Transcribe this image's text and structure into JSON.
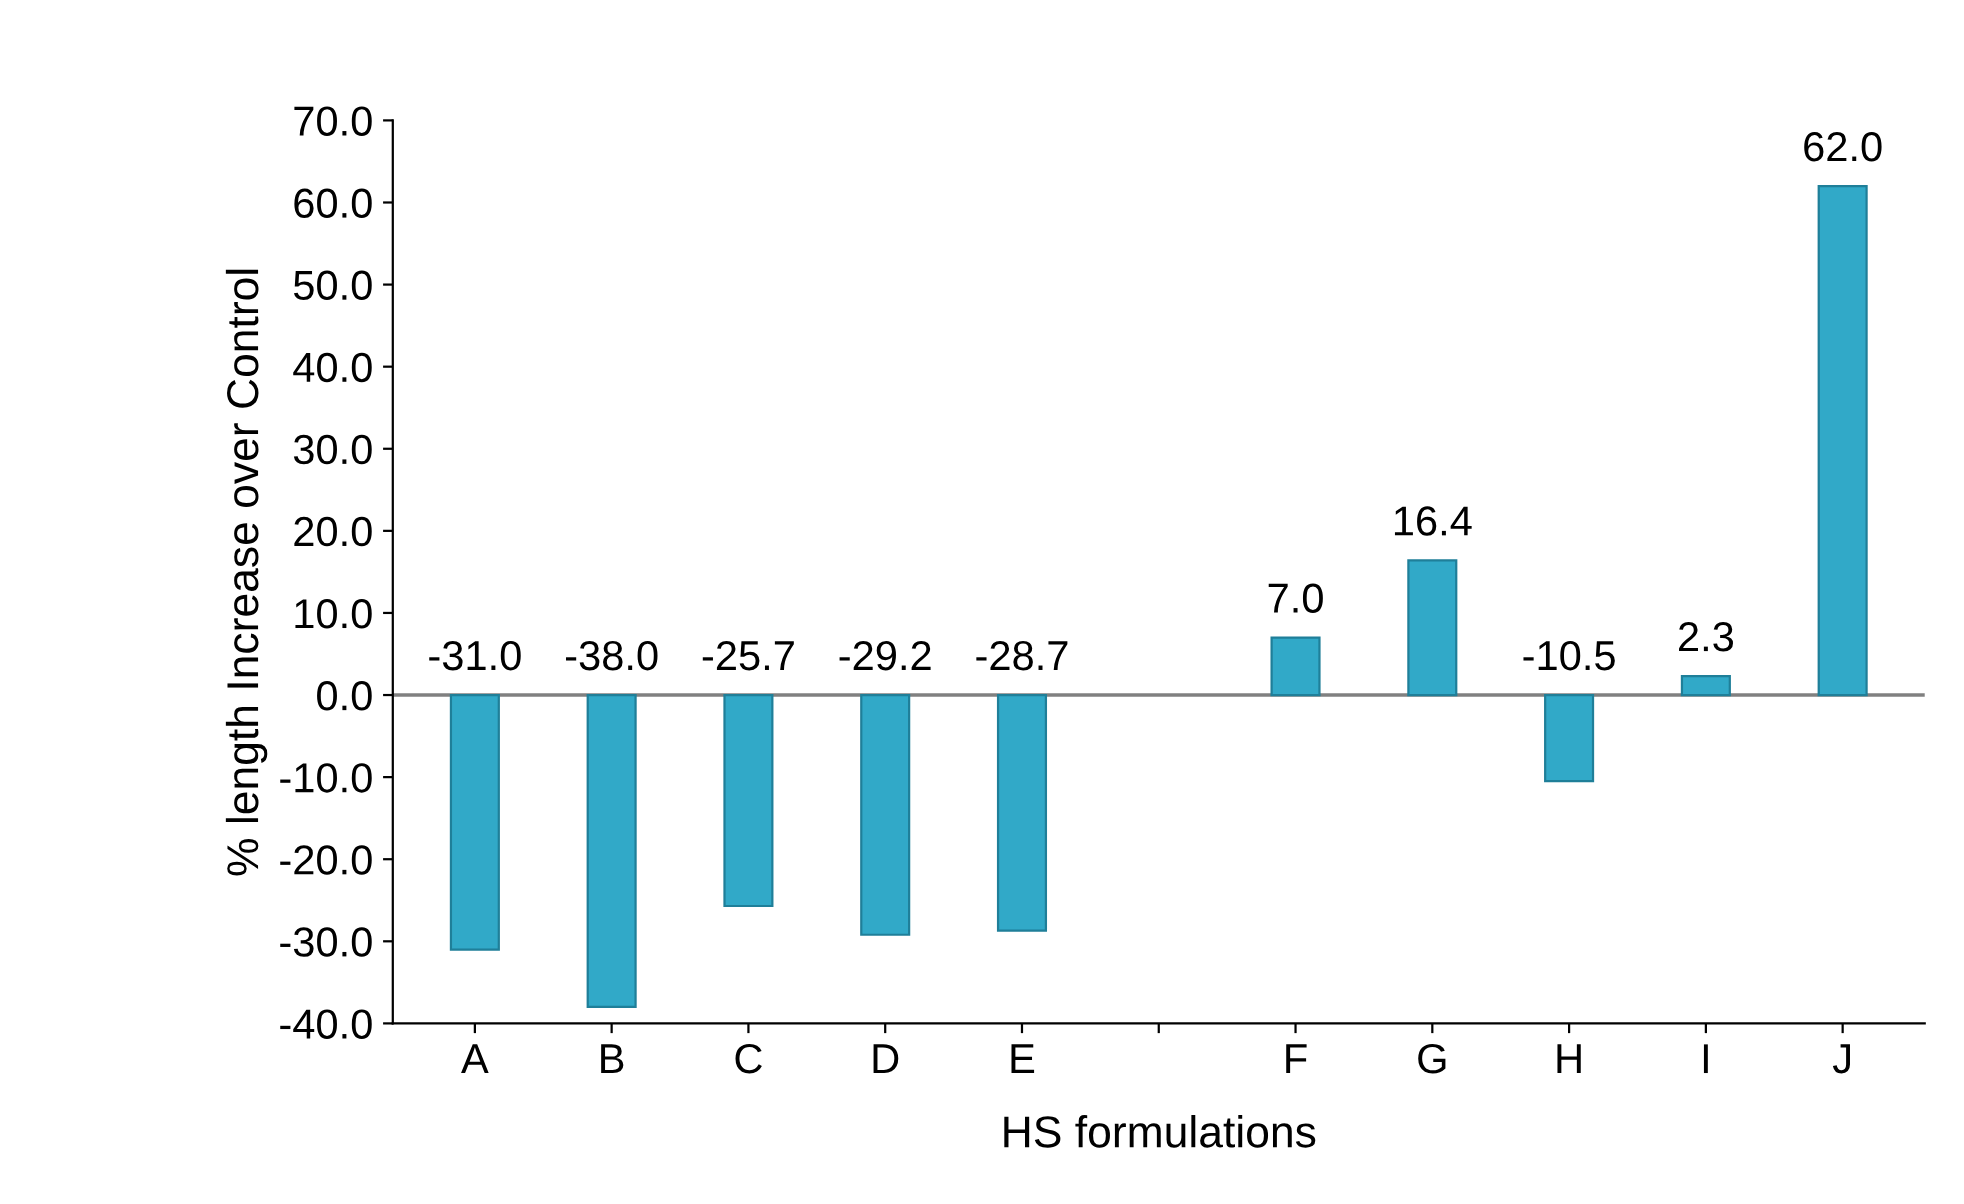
{
  "chart_data": {
    "type": "bar",
    "xlabel": "HS formulations",
    "ylabel": "% length Increase over Control",
    "categories": [
      "A",
      "B",
      "C",
      "D",
      "E",
      null,
      "F",
      "G",
      "H",
      "I",
      "J"
    ],
    "values": [
      -31.0,
      -38.0,
      -25.7,
      -29.2,
      -28.7,
      null,
      7.0,
      16.4,
      -10.5,
      2.3,
      62.0
    ],
    "value_labels": [
      "-31.0",
      "-38.0",
      "-25.7",
      "-29.2",
      "-28.7",
      null,
      "7.0",
      "16.4",
      "-10.5",
      "2.3",
      "62.0"
    ],
    "color": "#31a9c8",
    "ylim": [
      -40,
      70
    ],
    "yticks": [
      {
        "value": -40,
        "label": "-40.0"
      },
      {
        "value": -30,
        "label": "-30.0"
      },
      {
        "value": -20,
        "label": "-20.0"
      },
      {
        "value": -10,
        "label": "-10.0"
      },
      {
        "value": 0,
        "label": "0.0"
      },
      {
        "value": 10,
        "label": "10.0"
      },
      {
        "value": 20,
        "label": "20.0"
      },
      {
        "value": 30,
        "label": "30.0"
      },
      {
        "value": 40,
        "label": "40.0"
      },
      {
        "value": 50,
        "label": "50.0"
      },
      {
        "value": 60,
        "label": "60.0"
      },
      {
        "value": 70,
        "label": "70.0"
      }
    ],
    "ref_lines": [
      {
        "axis": "y",
        "value": 0,
        "color": "#808080"
      }
    ],
    "grid": false
  }
}
